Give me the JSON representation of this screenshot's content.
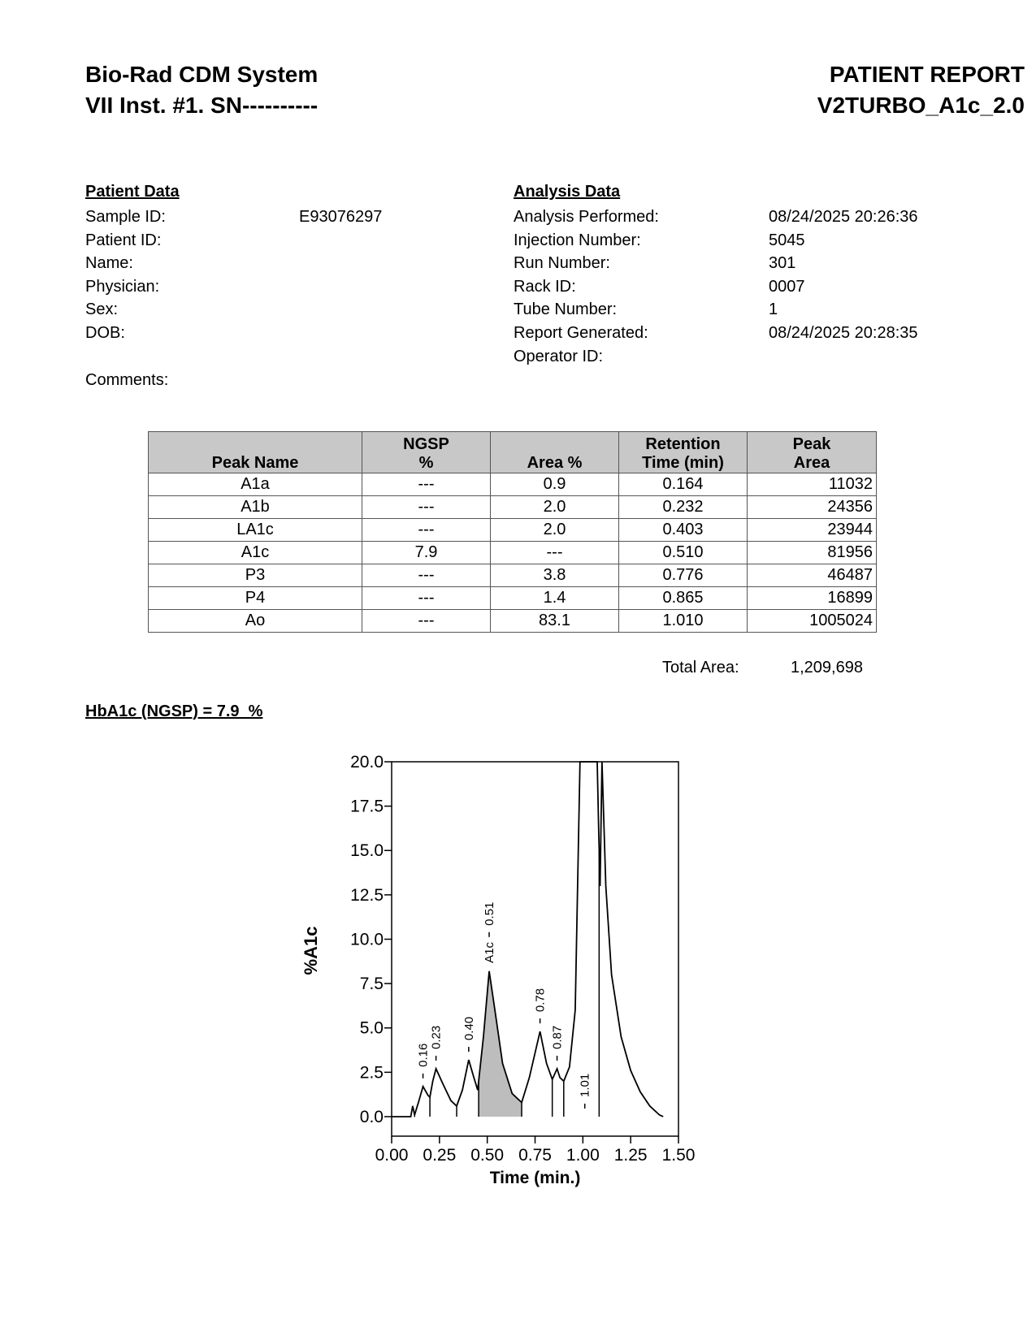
{
  "header": {
    "left": [
      "Bio-Rad CDM System",
      "VII Inst. #1. SN----------"
    ],
    "right": [
      "PATIENT REPORT",
      "V2TURBO_A1c_2.0"
    ]
  },
  "patient": {
    "title": "Patient Data",
    "rows": [
      [
        "Sample ID:",
        "E93076297"
      ],
      [
        "Patient ID:"
      ],
      [
        "Name:"
      ],
      [
        "Physician:"
      ],
      [
        "Sex:"
      ],
      [
        "DOB:"
      ]
    ],
    "comments": "Comments:"
  },
  "analysis": {
    "title": "Analysis Data",
    "rows": [
      [
        "Analysis Performed:",
        "08/24/2025 20:26:36"
      ],
      [
        "Injection Number:",
        "5045"
      ],
      [
        "Run Number:",
        "301"
      ],
      [
        "Rack ID:",
        "0007"
      ],
      [
        "Tube Number:",
        "1"
      ],
      [
        "Report Generated:",
        "08/24/2025 20:28:35"
      ],
      [
        "Operator ID:"
      ]
    ]
  },
  "table": {
    "header": [
      "Peak Name",
      "NGSP\n%",
      "Area %",
      "Retention\nTime (min)",
      "Peak\nArea"
    ],
    "rows": [
      [
        "A1a",
        "---",
        "0.9",
        "0.164",
        "11032"
      ],
      [
        "A1b",
        "---",
        "2.0",
        "0.232",
        "24356"
      ],
      [
        "LA1c",
        "---",
        "2.0",
        "0.403",
        "23944"
      ],
      [
        "A1c",
        "7.9",
        "---",
        "0.510",
        "81956"
      ],
      [
        "P3",
        "---",
        "3.8",
        "0.776",
        "46487"
      ],
      [
        "P4",
        "---",
        "1.4",
        "0.865",
        "16899"
      ],
      [
        "Ao",
        "---",
        "83.1",
        "1.010",
        "1005024"
      ]
    ]
  },
  "total": {
    "label": "Total Area:",
    "value": "1,209,698"
  },
  "result": "HbA1c (NGSP) = 7.9  %",
  "chart_data": {
    "type": "line",
    "xlabel": "Time (min.)",
    "ylabel": "%A1c",
    "color": "#000000",
    "xlim": [
      0,
      1.5
    ],
    "xticks": [
      {
        "value": 0,
        "label": "0.00"
      },
      {
        "value": 0.25,
        "label": "0.25"
      },
      {
        "value": 0.5,
        "label": "0.50"
      },
      {
        "value": 0.75,
        "label": "0.75"
      },
      {
        "value": 1,
        "label": "1.00"
      },
      {
        "value": 1.25,
        "label": "1.25"
      },
      {
        "value": 1.5,
        "label": "1.50"
      }
    ],
    "ylim": [
      -1.1,
      20
    ],
    "yticks": [
      {
        "value": 0,
        "label": "0.0"
      },
      2.5,
      {
        "value": 5,
        "label": "5.0"
      },
      7.5,
      {
        "value": 10,
        "label": "10.0"
      },
      12.5,
      {
        "value": 15,
        "label": "15.0"
      },
      17.5,
      {
        "value": 20,
        "label": "20.0"
      }
    ],
    "x": [
      0,
      0.1,
      0.11,
      0.12,
      0.14,
      0.164,
      0.19,
      0.2,
      0.215,
      0.232,
      0.27,
      0.31,
      0.34,
      0.37,
      0.403,
      0.43,
      0.45,
      0.48,
      0.51,
      0.54,
      0.58,
      0.63,
      0.68,
      0.72,
      0.776,
      0.81,
      0.84,
      0.865,
      0.88,
      0.9,
      0.93,
      0.96,
      0.985,
      1.075,
      1.083,
      1.09,
      1.1,
      1.12,
      1.15,
      1.2,
      1.25,
      1.3,
      1.35,
      1.4,
      1.42
    ],
    "values": [
      0,
      0,
      0.6,
      0.1,
      0.8,
      1.7,
      1.2,
      1.1,
      2.0,
      2.7,
      1.8,
      0.9,
      0.6,
      1.5,
      3.2,
      2.2,
      1.5,
      4.5,
      8.2,
      6.0,
      3.0,
      1.3,
      0.8,
      2.2,
      4.8,
      3.0,
      2.1,
      2.7,
      2.2,
      2.0,
      2.8,
      6.0,
      20,
      20,
      16,
      13,
      20,
      13,
      8,
      4.5,
      2.6,
      1.4,
      0.6,
      0.1,
      0
    ],
    "annotations": [
      {
        "x": 0.164,
        "label": "0.16"
      },
      {
        "x": 0.232,
        "label": "0.23"
      },
      {
        "x": 0.403,
        "label": "0.40"
      },
      {
        "x": 0.51,
        "label": "0.51",
        "name": "A1c"
      },
      {
        "x": 0.776,
        "label": "0.78"
      },
      {
        "x": 0.865,
        "label": "0.87"
      },
      {
        "x": 1.01,
        "label": "1.01"
      }
    ],
    "peak_bounds": [
      0.12,
      0.2,
      0.34,
      0.455,
      0.68,
      0.84,
      0.9,
      1.085
    ],
    "shaded_range": [
      0.455,
      0.68
    ]
  }
}
